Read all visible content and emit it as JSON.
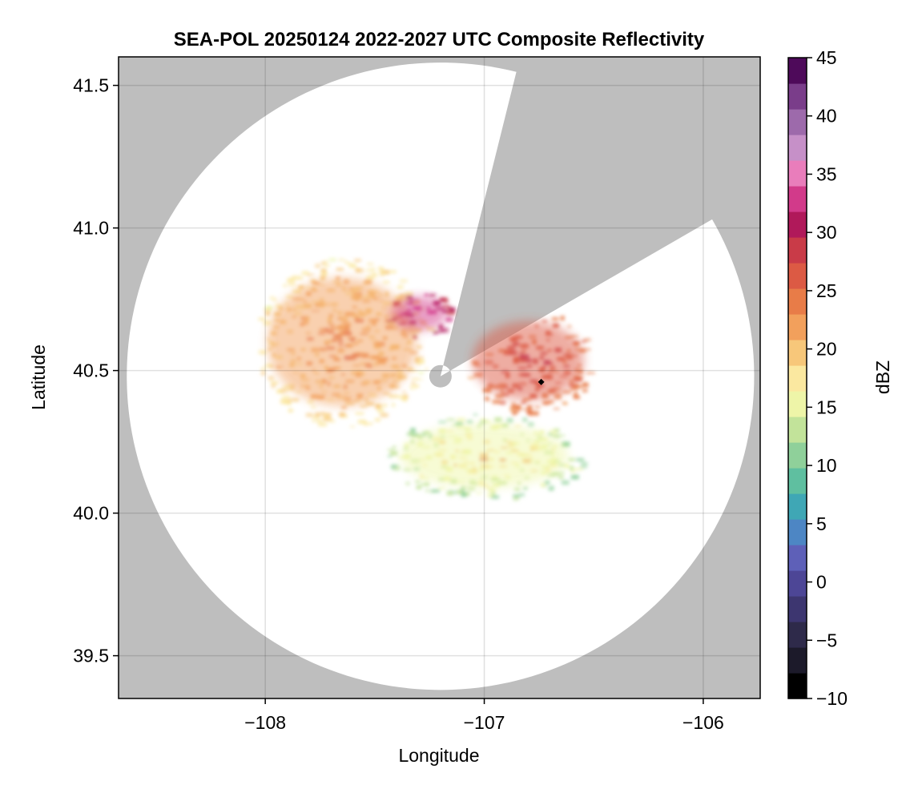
{
  "chart_data": {
    "type": "heatmap",
    "title": "SEA-POL 20250124 2022-2027 UTC Composite Reflectivity",
    "xlabel": "Longitude",
    "ylabel": "Latitude",
    "xlim": [
      -108.67,
      -105.74
    ],
    "ylim": [
      39.35,
      41.6
    ],
    "x_ticks": [
      -108,
      -107,
      -106
    ],
    "x_tick_labels": [
      "−108",
      "−107",
      "−106"
    ],
    "y_ticks": [
      39.5,
      40.0,
      40.5,
      41.0,
      41.5
    ],
    "y_tick_labels": [
      "39.5",
      "40.0",
      "40.5",
      "41.0",
      "41.5"
    ],
    "grid": true,
    "background_color": "#bebebe",
    "radar": {
      "center_lon": -107.2,
      "center_lat": 40.48,
      "range_radius_deg_lat": 1.1,
      "blocked_sector_bearing_deg": [
        14,
        60
      ]
    },
    "marker": {
      "lon": -106.74,
      "lat": 40.46,
      "shape": "diamond",
      "color": "#000000"
    },
    "colorbar": {
      "label": "dBZ",
      "min": -10,
      "max": 45,
      "ticks": [
        -10,
        -5,
        0,
        5,
        10,
        15,
        20,
        25,
        30,
        35,
        40,
        45
      ],
      "tick_labels": [
        "−10",
        "−5",
        "0",
        "5",
        "10",
        "15",
        "20",
        "25",
        "30",
        "35",
        "40",
        "45"
      ],
      "colors": [
        "#000000",
        "#1c1a2a",
        "#2e2a4a",
        "#3d3670",
        "#4d4696",
        "#5e60b8",
        "#4d86c4",
        "#3fa7b5",
        "#5fbfa0",
        "#8fd09a",
        "#c2e39a",
        "#eef5a8",
        "#fbe8a0",
        "#f7c77a",
        "#f2a05c",
        "#e87c48",
        "#dc5a44",
        "#c93b48",
        "#b0195a",
        "#d23a8a",
        "#e97dbb",
        "#c690c8",
        "#9d6aab",
        "#7a3d8a",
        "#4e0a5a"
      ]
    },
    "echo_regions": [
      {
        "name": "northwest arm",
        "lon_range": [
          -108.05,
          -107.25
        ],
        "lat_range": [
          40.3,
          40.9
        ],
        "dbz_range": [
          12,
          30
        ]
      },
      {
        "name": "core north of radar",
        "lon_range": [
          -107.45,
          -107.15
        ],
        "lat_range": [
          40.62,
          40.78
        ],
        "dbz_range": [
          25,
          40
        ]
      },
      {
        "name": "east lobe",
        "lon_range": [
          -107.1,
          -106.5
        ],
        "lat_range": [
          40.35,
          40.72
        ],
        "dbz_range": [
          20,
          32
        ]
      },
      {
        "name": "southern band",
        "lon_range": [
          -107.45,
          -106.55
        ],
        "lat_range": [
          40.05,
          40.35
        ],
        "dbz_range": [
          5,
          27
        ]
      }
    ]
  }
}
